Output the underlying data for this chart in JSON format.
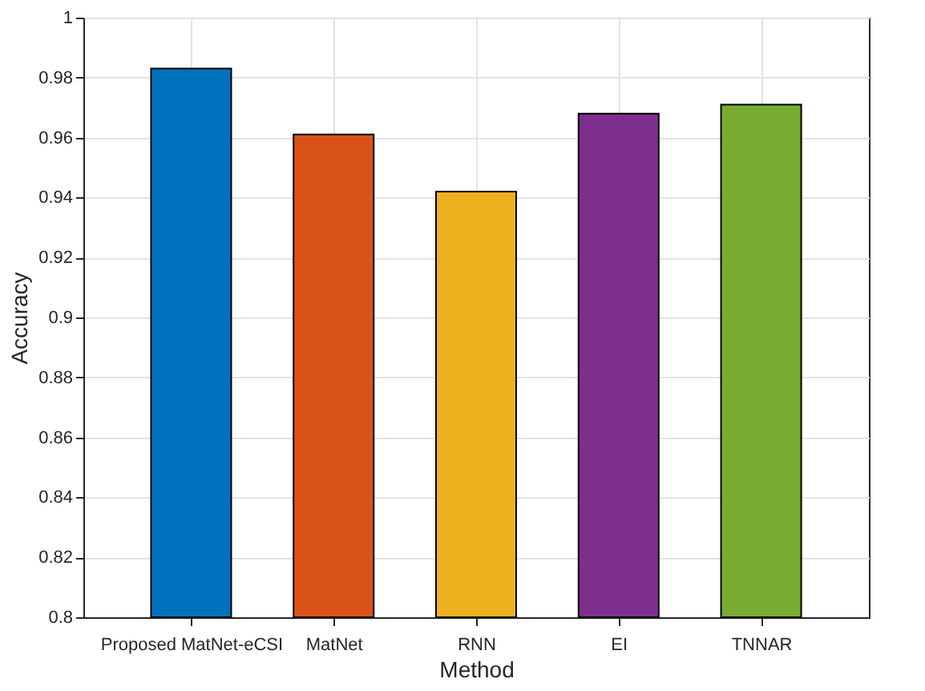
{
  "chart_data": {
    "type": "bar",
    "xlabel": "Method",
    "ylabel": "Accuracy",
    "categories": [
      "Proposed MatNet-eCSI",
      "MatNet",
      "RNN",
      "EI",
      "TNNAR"
    ],
    "values": [
      0.983,
      0.961,
      0.942,
      0.968,
      0.971
    ],
    "colors": [
      "#0072bd",
      "#d95319",
      "#edb120",
      "#7e2f8e",
      "#77ac30"
    ],
    "ylim": [
      0.8,
      1
    ],
    "yticks": [
      0.8,
      0.82,
      0.84,
      0.86,
      0.88,
      0.9,
      0.92,
      0.94,
      0.96,
      0.98,
      1
    ],
    "grid": true
  }
}
